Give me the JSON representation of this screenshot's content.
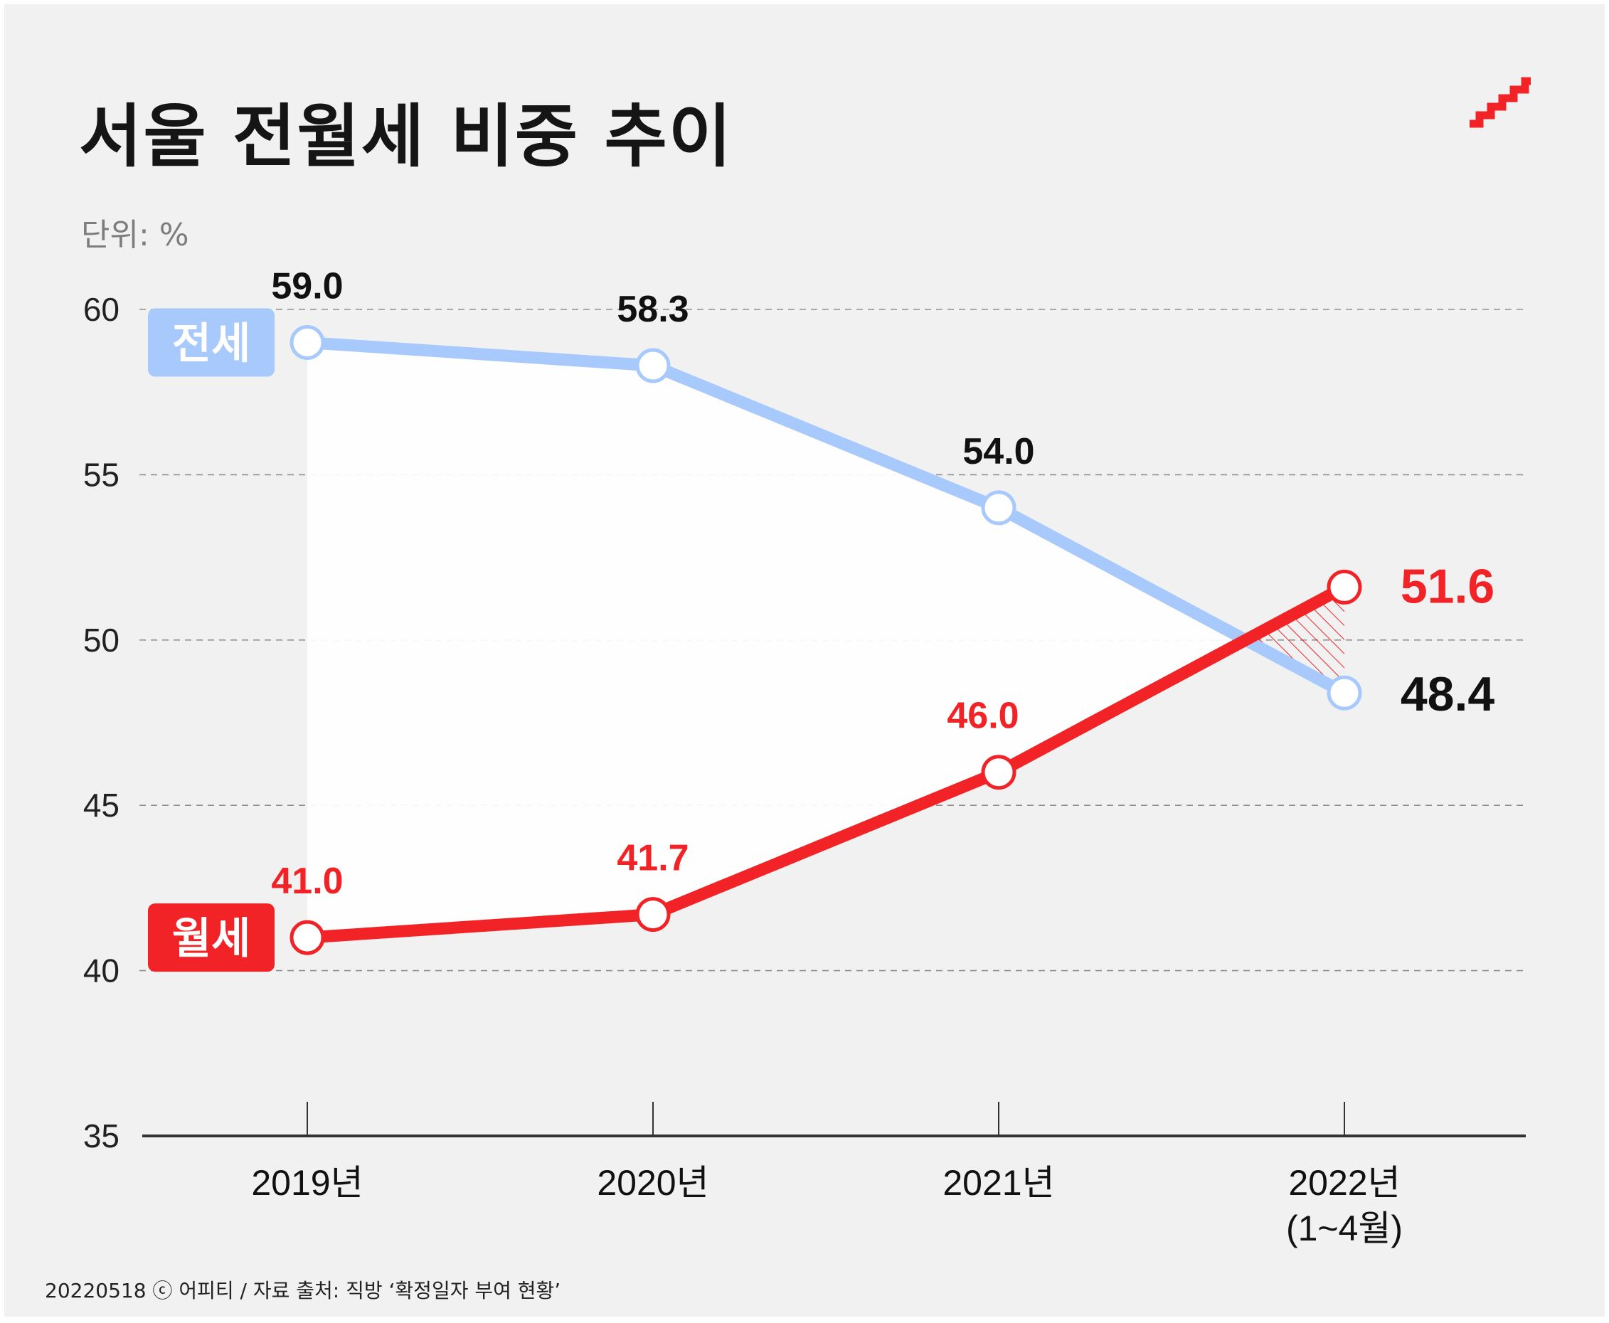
{
  "title": "서울 전월세 비중 추이",
  "unit_label": "단위: %",
  "footer": "20220518 ⓒ 어피티 / 자료 출처: 직방 ‘확정일자 부여 현황’",
  "icons": {
    "logo": "red-stairs-logo"
  },
  "colors": {
    "jeonse": "#a7c9fb",
    "wolse": "#f22326",
    "background": "#f1f1f1",
    "grid": "#909090",
    "axis": "#333333",
    "title": "#151515"
  },
  "chart_data": {
    "type": "line",
    "title": "서울 전월세 비중 추이",
    "ylabel": "단위: %",
    "xlabel": "",
    "categories": [
      "2019년",
      "2020년",
      "2021년",
      "2022년 (1~4월)"
    ],
    "ylim": [
      35,
      60
    ],
    "yticks": [
      35,
      40,
      45,
      50,
      55,
      60
    ],
    "grid": true,
    "legend": "inline labels at left",
    "series": [
      {
        "name": "전세",
        "values": [
          59.0,
          58.3,
          54.0,
          48.4
        ],
        "labels": [
          "59.0",
          "58.3",
          "54.0",
          "48.4"
        ],
        "color": "#a7c9fb"
      },
      {
        "name": "월세",
        "values": [
          41.0,
          41.7,
          46.0,
          51.6
        ],
        "labels": [
          "41.0",
          "41.7",
          "46.0",
          "51.6"
        ],
        "color": "#f22326"
      }
    ]
  }
}
